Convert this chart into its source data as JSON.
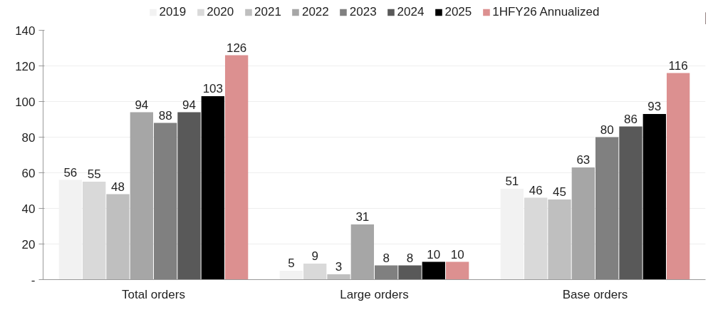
{
  "chart_data": {
    "type": "bar",
    "categories": [
      "Total orders",
      "Large orders",
      "Base orders"
    ],
    "series": [
      {
        "name": "2019",
        "color": "#f2f2f2",
        "values": [
          56,
          5,
          51
        ]
      },
      {
        "name": "2020",
        "color": "#d9d9d9",
        "values": [
          55,
          9,
          46
        ]
      },
      {
        "name": "2021",
        "color": "#bfbfbf",
        "values": [
          48,
          3,
          45
        ]
      },
      {
        "name": "2022",
        "color": "#a6a6a6",
        "values": [
          94,
          31,
          63
        ]
      },
      {
        "name": "2023",
        "color": "#808080",
        "values": [
          88,
          8,
          80
        ]
      },
      {
        "name": "2024",
        "color": "#595959",
        "values": [
          94,
          8,
          86
        ]
      },
      {
        "name": "2025",
        "color": "#000000",
        "values": [
          103,
          10,
          93
        ]
      },
      {
        "name": "1HFY26 Annualized",
        "color": "#dc9090",
        "values": [
          126,
          10,
          116
        ]
      }
    ],
    "ylim": [
      0,
      140
    ],
    "yticks": [
      {
        "value": 0,
        "label": "-"
      },
      20,
      40,
      60,
      80,
      100,
      120,
      140
    ],
    "grid": "y",
    "legend": "top",
    "data_labels": true
  }
}
